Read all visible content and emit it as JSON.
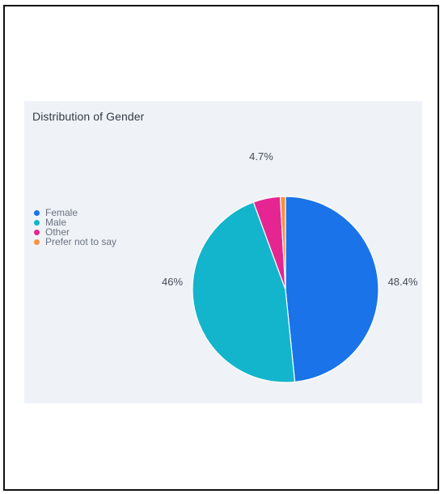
{
  "chart_data": {
    "type": "pie",
    "title": "Distribution of Gender",
    "legend_position": "left",
    "categories": [
      "Female",
      "Male",
      "Other",
      "Prefer not to say"
    ],
    "values": [
      48.4,
      46.0,
      4.7,
      0.9
    ],
    "data_labels": [
      "48.4%",
      "46%",
      "4.7%",
      ""
    ],
    "colors": [
      "#1a73e8",
      "#12b5cb",
      "#e52592",
      "#fa903e"
    ]
  }
}
